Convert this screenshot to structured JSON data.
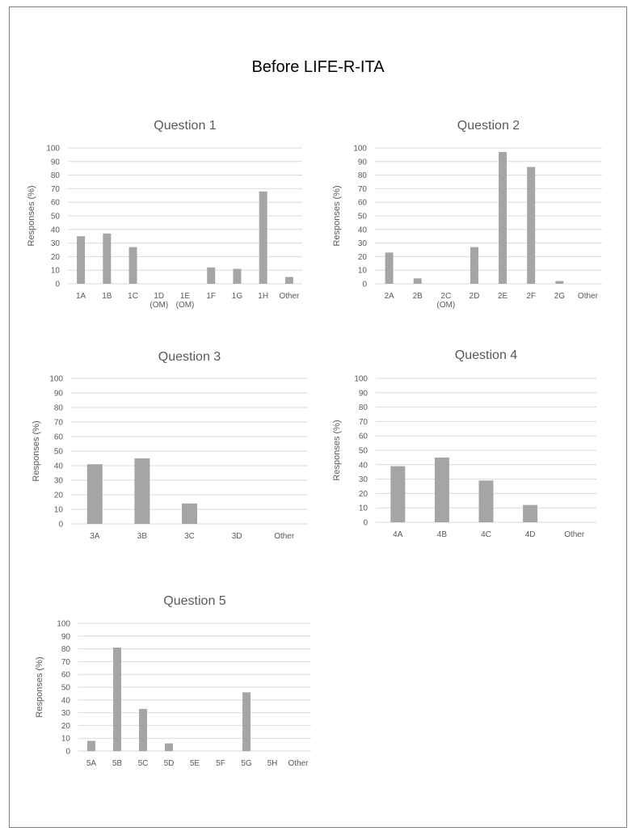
{
  "page": {
    "title": "Before LIFE-R-ITA"
  },
  "colors": {
    "bar": "#a5a5a5",
    "grid": "#d9d9d9",
    "text": "#595959"
  },
  "chart_data": [
    {
      "type": "bar",
      "title": "Question 1",
      "ylabel": "Responses (%)",
      "xlabel": "",
      "ylim": [
        0,
        100
      ],
      "yticks": [
        0,
        10,
        20,
        30,
        40,
        50,
        60,
        70,
        80,
        90,
        100
      ],
      "categories": [
        "1A",
        "1B",
        "1C",
        "1D\n(OM)",
        "1E\n(OM)",
        "1F",
        "1G",
        "1H",
        "Other"
      ],
      "values": [
        35,
        37,
        27,
        0,
        0,
        12,
        11,
        68,
        5
      ]
    },
    {
      "type": "bar",
      "title": "Question 2",
      "ylabel": "Responses (%)",
      "xlabel": "",
      "ylim": [
        0,
        100
      ],
      "yticks": [
        0,
        10,
        20,
        30,
        40,
        50,
        60,
        70,
        80,
        90,
        100
      ],
      "categories": [
        "2A",
        "2B",
        "2C\n(OM)",
        "2D",
        "2E",
        "2F",
        "2G",
        "Other"
      ],
      "values": [
        23,
        4,
        0,
        27,
        97,
        86,
        2,
        0
      ]
    },
    {
      "type": "bar",
      "title": "Question 3",
      "ylabel": "Responses (%)",
      "xlabel": "",
      "ylim": [
        0,
        100
      ],
      "yticks": [
        0,
        10,
        20,
        30,
        40,
        50,
        60,
        70,
        80,
        90,
        100
      ],
      "categories": [
        "3A",
        "3B",
        "3C",
        "3D",
        "Other"
      ],
      "values": [
        41,
        45,
        14,
        0,
        0
      ]
    },
    {
      "type": "bar",
      "title": "Question 4",
      "ylabel": "Responses (%)",
      "xlabel": "",
      "ylim": [
        0,
        100
      ],
      "yticks": [
        0,
        10,
        20,
        30,
        40,
        50,
        60,
        70,
        80,
        90,
        100
      ],
      "categories": [
        "4A",
        "4B",
        "4C",
        "4D",
        "Other"
      ],
      "values": [
        39,
        45,
        29,
        12,
        0
      ]
    },
    {
      "type": "bar",
      "title": "Question 5",
      "ylabel": "Responses (%)",
      "xlabel": "",
      "ylim": [
        0,
        100
      ],
      "yticks": [
        0,
        10,
        20,
        30,
        40,
        50,
        60,
        70,
        80,
        90,
        100
      ],
      "categories": [
        "5A",
        "5B",
        "5C",
        "5D",
        "5E",
        "5F",
        "5G",
        "5H",
        "Other"
      ],
      "values": [
        8,
        81,
        33,
        6,
        0,
        0,
        46,
        0,
        0
      ]
    }
  ]
}
